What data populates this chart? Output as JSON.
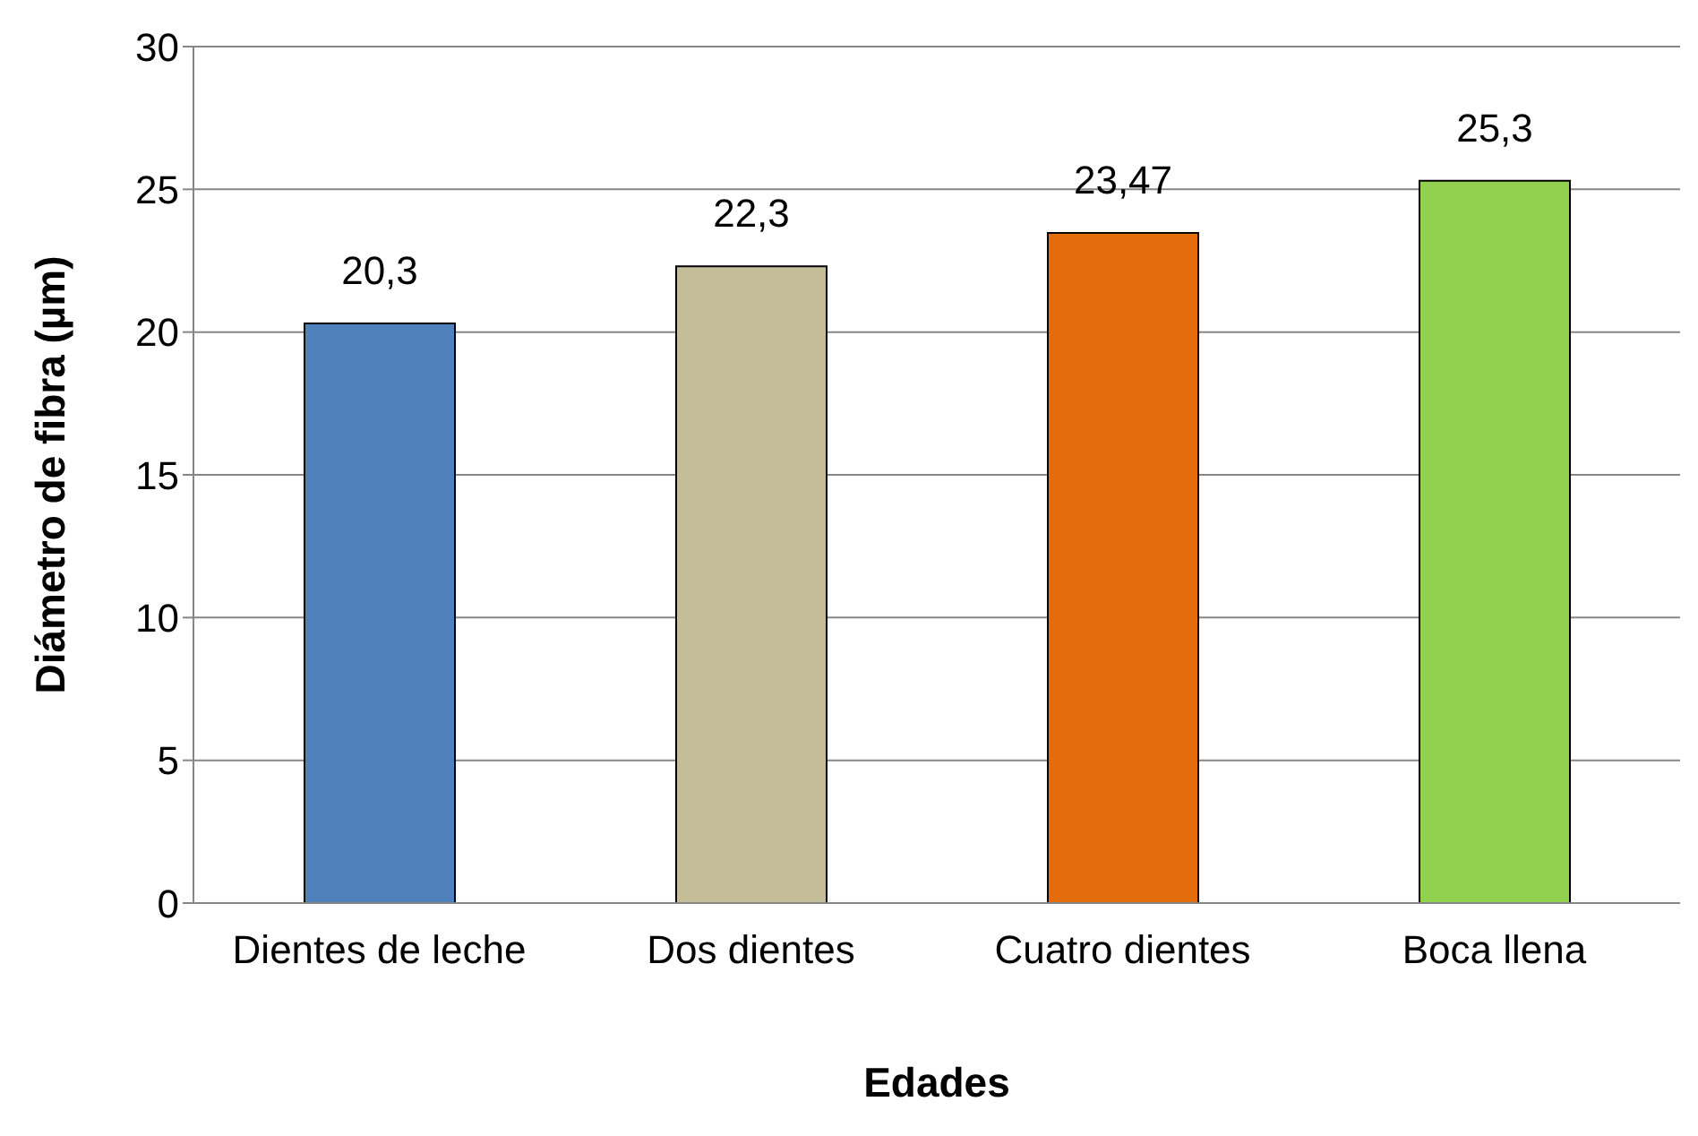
{
  "chart_data": {
    "type": "bar",
    "xlabel": "Edades",
    "ylabel": "Diámetro de fibra (µm)",
    "categories": [
      "Dientes de leche",
      "Dos dientes",
      "Cuatro dientes",
      "Boca llena"
    ],
    "values": [
      20.3,
      22.3,
      23.47,
      25.3
    ],
    "value_labels": [
      "20,3",
      "22,3",
      "23,47",
      "25,3"
    ],
    "colors": [
      "#4f81bd",
      "#c4bd97",
      "#e46c0a",
      "#92d050"
    ],
    "ylim": [
      0,
      30
    ],
    "yticks": [
      0,
      5,
      10,
      15,
      20,
      25,
      30
    ],
    "grid": "y"
  }
}
